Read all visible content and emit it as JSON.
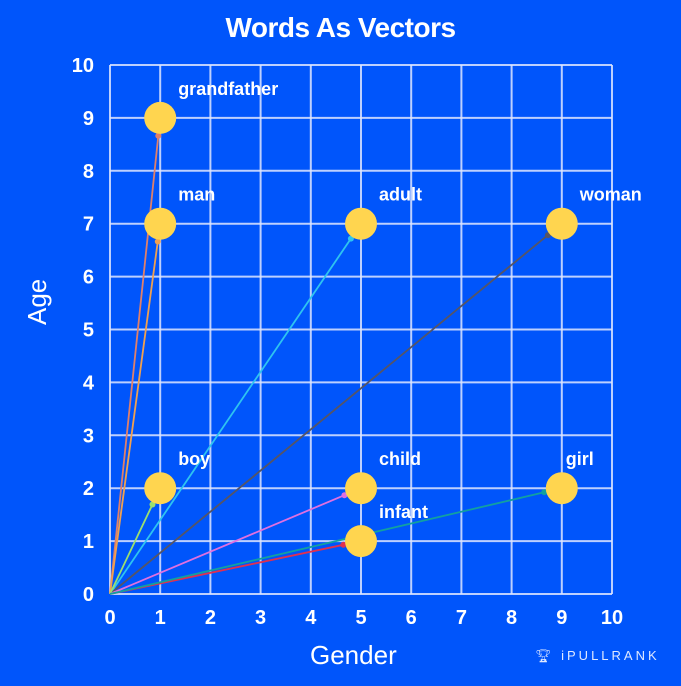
{
  "chart_data": {
    "type": "scatter",
    "title": "Words As Vectors",
    "xlabel": "Gender",
    "ylabel": "Age",
    "xlim": [
      0,
      10
    ],
    "ylim": [
      0,
      10
    ],
    "xticks": [
      0,
      1,
      2,
      3,
      4,
      5,
      6,
      7,
      8,
      9,
      10
    ],
    "yticks": [
      0,
      1,
      2,
      3,
      4,
      5,
      6,
      7,
      8,
      9,
      10
    ],
    "grid": true,
    "points": [
      {
        "label": "grandfather",
        "x": 1,
        "y": 9,
        "arrow_color": "#e0806a"
      },
      {
        "label": "man",
        "x": 1,
        "y": 7,
        "arrow_color": "#f0a050"
      },
      {
        "label": "adult",
        "x": 5,
        "y": 7,
        "arrow_color": "#2ec4f0"
      },
      {
        "label": "woman",
        "x": 9,
        "y": 7,
        "arrow_color": "#555566"
      },
      {
        "label": "boy",
        "x": 1,
        "y": 2,
        "arrow_color": "#9be070"
      },
      {
        "label": "child",
        "x": 5,
        "y": 2,
        "arrow_color": "#e070e0"
      },
      {
        "label": "infant",
        "x": 5,
        "y": 1,
        "arrow_color": "#e03050"
      },
      {
        "label": "girl",
        "x": 9,
        "y": 2,
        "arrow_color": "#12a0a0"
      }
    ],
    "marker_color": "#ffd54f",
    "background": "#0055fb"
  },
  "branding": {
    "logo_text": "iPULLRANK"
  }
}
